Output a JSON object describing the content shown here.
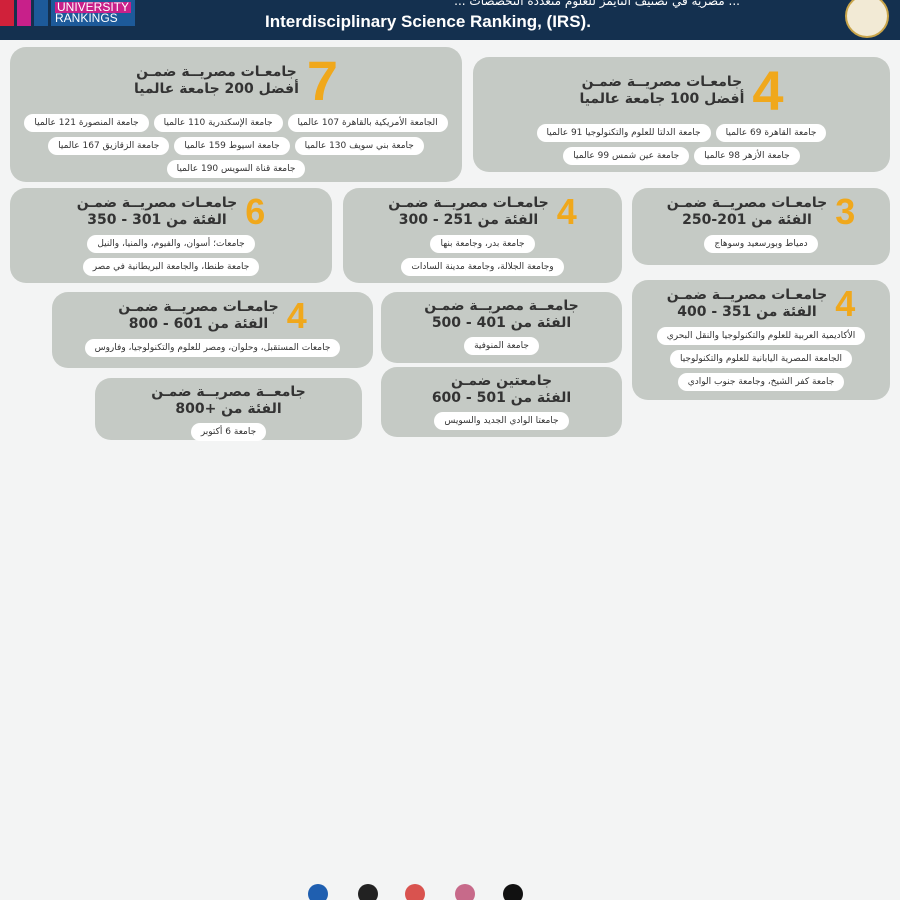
{
  "header": {
    "logo_line1": "UNIVERSITY",
    "logo_line2": "RANKINGS",
    "title": "Interdisciplinary Science Ranking, (IRS).",
    "title_ar": "... مصرية في تصنيف التايمز للعلوم متعددة التخصصات ...",
    "colors": {
      "header_bg": "#14304f",
      "accent": "#f0a81c",
      "card": "#c5cac5"
    }
  },
  "cards": [
    {
      "number": "7",
      "line1": "جامعـات مصريــة ضمـن",
      "line2": "أفضل 200 جامعة عالميا",
      "items": [
        "الجامعة الأمريكية بالقاهرة 107 عالميا",
        "جامعة الإسكندرية 110 عالميا",
        "جامعة المنصورة 121 عالميا",
        "جامعة بني سويف 130 عالميا",
        "جامعة اسيوط 159 عالميا",
        "جامعة الزقازيق 167 عالميا",
        "جامعة قناة السويس 190 عالميا"
      ]
    },
    {
      "number": "4",
      "line1": "جامعـات مصريــة ضمـن",
      "line2": "أفضل 100 جامعة عالميا",
      "items": [
        "جامعة القاهرة 69 عالميا",
        "جامعة الدلتا للعلوم والتكنولوجيا 91 عالميا",
        "جامعة الأزهر 98 عالميا",
        "جامعة عين شمس 99 عالميا"
      ]
    },
    {
      "number": "6",
      "line1": "جامعـات مصريــة ضمـن",
      "line2": "الفئة من 301 - 350",
      "items": [
        "جامعات؛ أسوان، والفيوم، والمنيا، والنيل",
        "جامعة طنطا، والجامعة البريطانية في مصر"
      ]
    },
    {
      "number": "4",
      "line1": "جامعـات مصريــة ضمـن",
      "line2": "الفئة من 251 - 300",
      "items": [
        "جامعة بدر، وجامعة بنها",
        "وجامعة الجلالة، وجامعة مدينة السادات"
      ]
    },
    {
      "number": "3",
      "line1": "جامعـات مصريــة ضمـن",
      "line2": "الفئة من 201-250",
      "items": [
        "دمياط وبورسعيد وسوهاج"
      ]
    },
    {
      "number": "4",
      "line1": "جامعـات مصريــة ضمـن",
      "line2": "الفئة من 351 - 400",
      "items": [
        "الأكاديمية العربية للعلوم والتكنولوجيا والنقل البحري",
        "الجامعة المصرية اليابانية للعلوم والتكنولوجيا",
        "جامعة كفر الشيخ، وجامعة جنوب الوادي"
      ]
    },
    {
      "number": "4",
      "line1": "جامعـات مصريــة ضمـن",
      "line2": "الفئة من 601 - 800",
      "items": [
        "جامعات المستقبل، وحلوان، ومصر للعلوم والتكنولوجيا، وفاروس"
      ]
    },
    {
      "number": "",
      "line1": "جامعــة مصريــة ضمـن",
      "line2": "الفئة من 401 - 500",
      "items": [
        "جامعة المنوفية"
      ]
    },
    {
      "number": "",
      "line1": "جامعتين ضمـن",
      "line2": "الفئة من 501 - 600",
      "items": [
        "جامعتا الوادي الجديد والسويس"
      ]
    },
    {
      "number": "",
      "line1": "جامعــة مصريــة ضمـن",
      "line2": "الفئة من +800",
      "items": [
        "جامعة 6 أكتوبر"
      ]
    }
  ]
}
